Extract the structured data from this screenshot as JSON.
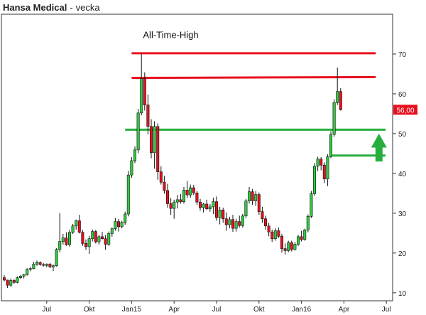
{
  "header": {
    "instrument": "Hansa Medical",
    "separator": "-",
    "interval": "vecka"
  },
  "chart_data": {
    "type": "candlestick",
    "title": "Hansa Medical",
    "interval": "vecka",
    "y_axis": {
      "position": "right",
      "ylim": [
        8,
        80
      ],
      "ticks": [
        10,
        20,
        30,
        40,
        50,
        60,
        70
      ]
    },
    "x_ticks": [
      "Jul",
      "Okt",
      "Jan15",
      "Apr",
      "Jul",
      "Okt",
      "Jan16",
      "Apr",
      "Jul"
    ],
    "x_tick_positions": [
      13,
      26,
      39,
      52,
      65,
      78,
      91,
      104,
      117
    ],
    "n_weeks": 120,
    "grid": false,
    "last_price": "56,00",
    "colors": {
      "up": "#2ecc40",
      "down": "#e8101e",
      "wick": "#111111",
      "resistance": "#e8101e",
      "support": "#27ae3f",
      "arrow": "#27ae3f",
      "price_tag": "#e8101e"
    },
    "annotations": [
      {
        "label": "All-Time-High",
        "type": "label",
        "x": 39,
        "y": 74
      }
    ],
    "lines": [
      {
        "name": "resistance-70",
        "color": "#e8101e",
        "y": [
          70.2,
          70.2
        ],
        "x": [
          39,
          112
        ]
      },
      {
        "name": "resistance-64",
        "color": "#e8101e",
        "y": [
          64,
          64.2
        ],
        "x": [
          39,
          112
        ]
      },
      {
        "name": "support-51",
        "color": "#27ae3f",
        "y": [
          51,
          51
        ],
        "x": [
          37,
          115
        ]
      },
      {
        "name": "support-44",
        "color": "#27ae3f",
        "y": [
          44.5,
          44.5
        ],
        "x": [
          100,
          115
        ]
      }
    ],
    "arrow": {
      "name": "up-arrow",
      "x": 113,
      "y_bottom": 43,
      "y_top": 50
    },
    "candles": [
      [
        0,
        13.8,
        14.4,
        12.9,
        13.2
      ],
      [
        1,
        13.2,
        13.3,
        11.2,
        11.9
      ],
      [
        2,
        11.9,
        13.6,
        11.5,
        13.1
      ],
      [
        3,
        13.1,
        13.4,
        12.3,
        12.6
      ],
      [
        4,
        12.6,
        14.1,
        12.4,
        13.8
      ],
      [
        5,
        13.8,
        14.5,
        13.5,
        14.2
      ],
      [
        6,
        14.2,
        14.8,
        13.6,
        14.6
      ],
      [
        7,
        14.6,
        16.2,
        14.3,
        15.9
      ],
      [
        8,
        15.9,
        16.5,
        15.4,
        16.1
      ],
      [
        9,
        16.1,
        17.8,
        15.9,
        17.2
      ],
      [
        10,
        17.2,
        18.1,
        16.8,
        17.6
      ],
      [
        11,
        17.6,
        17.9,
        16.8,
        17.1
      ],
      [
        12,
        17.1,
        17.5,
        16.6,
        16.9
      ],
      [
        13,
        16.9,
        17.4,
        16.4,
        17.2
      ],
      [
        14,
        17.2,
        17.5,
        16.2,
        16.5
      ],
      [
        15,
        16.5,
        17.1,
        15.5,
        16.8
      ],
      [
        16,
        16.8,
        21.2,
        16.6,
        20.9
      ],
      [
        17,
        20.9,
        30,
        20.2,
        22.9
      ],
      [
        18,
        22.9,
        24.8,
        22.1,
        23.8
      ],
      [
        19,
        23.8,
        25.2,
        21.8,
        22.1
      ],
      [
        20,
        22.1,
        25.8,
        21.6,
        25.2
      ],
      [
        21,
        25.2,
        27.3,
        24.8,
        26.8
      ],
      [
        22,
        26.8,
        28.4,
        25.9,
        28.1
      ],
      [
        23,
        28.1,
        29.6,
        24.9,
        25.2
      ],
      [
        24,
        25.2,
        25.8,
        21.8,
        22.4
      ],
      [
        25,
        22.4,
        23.4,
        20.8,
        21.6
      ],
      [
        26,
        21.6,
        24.3,
        19.8,
        23.6
      ],
      [
        27,
        23.6,
        25.9,
        22.9,
        25.4
      ],
      [
        28,
        25.4,
        25.8,
        22.4,
        22.8
      ],
      [
        29,
        22.8,
        24.6,
        22.1,
        24.1
      ],
      [
        30,
        24.1,
        25.3,
        23.4,
        23.6
      ],
      [
        31,
        23.6,
        24.5,
        20.8,
        22.2
      ],
      [
        32,
        22.2,
        25.4,
        21.8,
        24.9
      ],
      [
        33,
        24.9,
        26.4,
        24.1,
        26.1
      ],
      [
        34,
        26.1,
        28.8,
        25.6,
        27.9
      ],
      [
        35,
        27.9,
        28.6,
        25.4,
        26.6
      ],
      [
        36,
        26.6,
        28.1,
        26.2,
        27.7
      ],
      [
        37,
        27.7,
        30.4,
        27.1,
        29.8
      ],
      [
        38,
        29.8,
        40.6,
        29.2,
        39.6
      ],
      [
        39,
        39.6,
        44.1,
        38.9,
        43.2
      ],
      [
        40,
        43.2,
        46.8,
        42.6,
        45.9
      ],
      [
        41,
        45.9,
        56.2,
        45.1,
        55.2
      ],
      [
        42,
        55.2,
        70.1,
        54.6,
        63.8
      ],
      [
        43,
        63.8,
        65.4,
        55.8,
        57.2
      ],
      [
        44,
        57.2,
        59.8,
        49.8,
        51.8
      ],
      [
        45,
        51.8,
        53.6,
        43.8,
        45.2
      ],
      [
        46,
        45.2,
        53.1,
        41.2,
        51.8
      ],
      [
        47,
        51.8,
        52.6,
        38.4,
        40.4
      ],
      [
        48,
        40.4,
        41.8,
        37.2,
        37.8
      ],
      [
        49,
        37.8,
        39.4,
        34.9,
        35.7
      ],
      [
        50,
        35.7,
        37.4,
        31.4,
        32.4
      ],
      [
        51,
        32.4,
        33.8,
        29.6,
        31.2
      ],
      [
        52,
        31.2,
        33.4,
        28.6,
        32.8
      ],
      [
        53,
        32.8,
        34.6,
        31.2,
        33.4
      ],
      [
        54,
        33.4,
        34.8,
        32.4,
        32.9
      ],
      [
        55,
        32.9,
        36.6,
        32.4,
        35.8
      ],
      [
        56,
        35.8,
        38.1,
        33.8,
        34.6
      ],
      [
        57,
        34.6,
        37.2,
        33.9,
        36.4
      ],
      [
        58,
        36.4,
        37.1,
        34.6,
        35.1
      ],
      [
        59,
        35.1,
        35.6,
        32.1,
        32.8
      ],
      [
        60,
        32.8,
        33.6,
        30.6,
        31.4
      ],
      [
        61,
        31.4,
        32.6,
        30.2,
        32.3
      ],
      [
        62,
        32.3,
        33.4,
        30.8,
        31.1
      ],
      [
        63,
        31.1,
        32.3,
        30.4,
        31.6
      ],
      [
        64,
        31.6,
        33.9,
        29.8,
        32.9
      ],
      [
        65,
        32.9,
        34.2,
        28.1,
        28.9
      ],
      [
        66,
        28.9,
        31.6,
        27.2,
        30.8
      ],
      [
        67,
        30.8,
        31.4,
        27.6,
        28.6
      ],
      [
        68,
        28.6,
        30.2,
        25.6,
        27.1
      ],
      [
        69,
        27.1,
        29.1,
        26.2,
        28.4
      ],
      [
        70,
        28.4,
        29.6,
        25.3,
        26.2
      ],
      [
        71,
        26.2,
        28.6,
        25.4,
        27.9
      ],
      [
        72,
        27.9,
        29.4,
        26.4,
        26.9
      ],
      [
        73,
        26.9,
        29.8,
        26.4,
        29.3
      ],
      [
        74,
        29.3,
        33.6,
        28.8,
        33.1
      ],
      [
        75,
        33.1,
        36.6,
        32.4,
        35.4
      ],
      [
        76,
        35.4,
        36.1,
        32.1,
        33.1
      ],
      [
        77,
        33.1,
        35.6,
        31.8,
        34.7
      ],
      [
        78,
        34.7,
        35.2,
        29.6,
        30.4
      ],
      [
        79,
        30.4,
        31.6,
        27.6,
        28.6
      ],
      [
        80,
        28.6,
        29.4,
        25.9,
        26.8
      ],
      [
        81,
        26.8,
        27.6,
        24.2,
        25.3
      ],
      [
        82,
        25.3,
        25.9,
        22.8,
        23.6
      ],
      [
        83,
        23.6,
        26.2,
        23.1,
        25.6
      ],
      [
        84,
        25.6,
        26.4,
        23.8,
        24.2
      ],
      [
        85,
        24.2,
        24.8,
        20.1,
        21.1
      ],
      [
        86,
        21.1,
        22.4,
        19.6,
        20.6
      ],
      [
        87,
        20.6,
        23.1,
        20.2,
        22.6
      ],
      [
        88,
        22.6,
        23.1,
        20.4,
        20.9
      ],
      [
        89,
        20.9,
        22.8,
        20.6,
        22.2
      ],
      [
        90,
        22.2,
        24.6,
        21.8,
        24.1
      ],
      [
        91,
        24.1,
        25.6,
        22.9,
        23.4
      ],
      [
        92,
        23.4,
        26.1,
        23.1,
        25.8
      ],
      [
        93,
        25.8,
        29.7,
        25.2,
        29.2
      ],
      [
        94,
        29.2,
        35.6,
        28.8,
        34.9
      ],
      [
        95,
        34.9,
        42.6,
        34.4,
        41.8
      ],
      [
        96,
        41.8,
        44.2,
        40.6,
        43.6
      ],
      [
        97,
        43.6,
        44.1,
        40.8,
        42.1
      ],
      [
        98,
        42.1,
        42.8,
        37.6,
        38.6
      ],
      [
        99,
        38.6,
        44.8,
        36.8,
        44.2
      ],
      [
        100,
        44.2,
        50.6,
        43.8,
        49.8
      ],
      [
        101,
        49.8,
        58.6,
        49.2,
        57.8
      ],
      [
        102,
        57.8,
        66.6,
        57.2,
        60.6
      ],
      [
        103,
        60.6,
        61.4,
        55.8,
        56.0
      ]
    ]
  }
}
